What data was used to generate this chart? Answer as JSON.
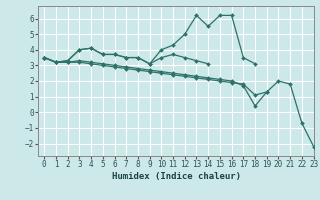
{
  "xlabel": "Humidex (Indice chaleur)",
  "xlim": [
    -0.5,
    23
  ],
  "ylim": [
    -2.8,
    6.8
  ],
  "yticks": [
    -2,
    -1,
    0,
    1,
    2,
    3,
    4,
    5,
    6
  ],
  "xticks": [
    0,
    1,
    2,
    3,
    4,
    5,
    6,
    7,
    8,
    9,
    10,
    11,
    12,
    13,
    14,
    15,
    16,
    17,
    18,
    19,
    20,
    21,
    22,
    23
  ],
  "bg_color": "#cce8e8",
  "line_color": "#2d7268",
  "grid_color": "#b8d8d8",
  "lines": [
    {
      "x": [
        0,
        1,
        2,
        3,
        4,
        5,
        6,
        7,
        8,
        9,
        10,
        11,
        12,
        13,
        14,
        15,
        16,
        17,
        18
      ],
      "y": [
        3.5,
        3.2,
        3.3,
        4.0,
        4.1,
        3.7,
        3.7,
        3.5,
        3.5,
        3.1,
        4.0,
        4.3,
        5.0,
        6.2,
        5.5,
        6.2,
        6.2,
        3.5,
        3.1
      ]
    },
    {
      "x": [
        0,
        1,
        2,
        3,
        4,
        5,
        6,
        7,
        8,
        9,
        10,
        11,
        12,
        13,
        14
      ],
      "y": [
        3.5,
        3.2,
        3.3,
        4.0,
        4.1,
        3.7,
        3.7,
        3.5,
        3.5,
        3.1,
        3.5,
        3.7,
        3.5,
        3.3,
        3.1
      ]
    },
    {
      "x": [
        0,
        1,
        2,
        3,
        4,
        5,
        6,
        7,
        8,
        9,
        10,
        11,
        12,
        13,
        14,
        15,
        16,
        17,
        18,
        19
      ],
      "y": [
        3.5,
        3.2,
        3.2,
        3.3,
        3.2,
        3.1,
        3.0,
        2.9,
        2.8,
        2.7,
        2.6,
        2.5,
        2.4,
        2.3,
        2.2,
        2.1,
        2.0,
        1.7,
        0.4,
        1.3
      ]
    },
    {
      "x": [
        0,
        1,
        2,
        3,
        4,
        5,
        6,
        7,
        8,
        9,
        10,
        11,
        12,
        13,
        14,
        15,
        16,
        17,
        18,
        19,
        20,
        21,
        22,
        23
      ],
      "y": [
        3.5,
        3.2,
        3.2,
        3.2,
        3.1,
        3.0,
        2.9,
        2.8,
        2.7,
        2.6,
        2.5,
        2.4,
        2.3,
        2.2,
        2.1,
        2.0,
        1.9,
        1.8,
        1.1,
        1.3,
        2.0,
        1.8,
        -0.7,
        -2.2
      ]
    }
  ]
}
